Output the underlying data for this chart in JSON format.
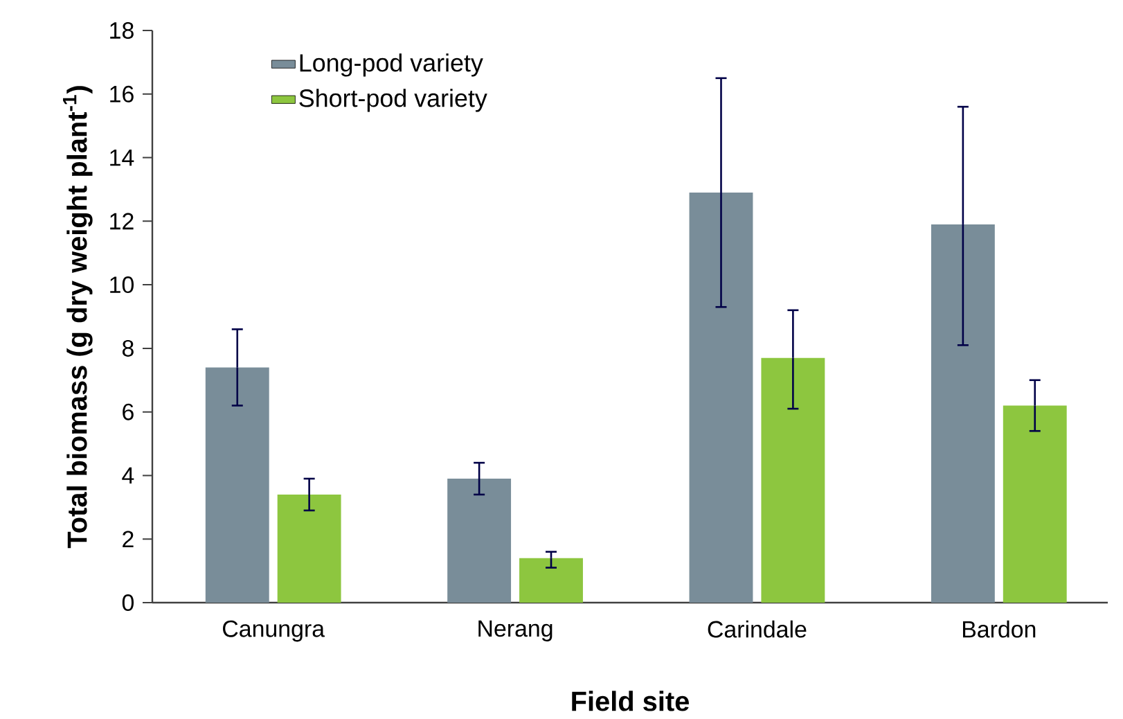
{
  "chart_data": {
    "type": "bar",
    "xlabel": "Field site",
    "ylabel": "Total biomass (g dry weight plant$^{-1}$)",
    "categories": [
      "Canungra",
      "Nerang",
      "Carindale",
      "Bardon"
    ],
    "series": [
      {
        "name": "Long-pod variety",
        "color": "#798d99",
        "values": [
          7.4,
          3.9,
          12.9,
          11.9
        ],
        "errors": [
          [
            6.2,
            8.6
          ],
          [
            3.4,
            4.4
          ],
          [
            9.3,
            16.5
          ],
          [
            8.1,
            15.6
          ]
        ]
      },
      {
        "name": "Short-pod variety",
        "color": "#8dc63f",
        "values": [
          3.4,
          1.4,
          7.7,
          6.2
        ],
        "errors": [
          [
            2.9,
            3.9
          ],
          [
            1.1,
            1.6
          ],
          [
            6.1,
            9.2
          ],
          [
            5.4,
            7.0
          ]
        ]
      }
    ],
    "ylim": [
      0,
      18
    ],
    "yticks": [
      0,
      2,
      4,
      6,
      8,
      10,
      12,
      14,
      16,
      18
    ],
    "grid": false,
    "legend": "top left"
  }
}
